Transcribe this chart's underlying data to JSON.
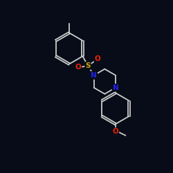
{
  "bg": "#080c18",
  "bc": "#cccccc",
  "bw": 1.3,
  "sc": "#ccaa00",
  "nc": "#2222ee",
  "oc": "#ee2200",
  "fs": 7.5,
  "doff": 0.055,
  "figsize": [
    2.5,
    2.5
  ],
  "dpi": 100,
  "xlim": [
    0,
    10
  ],
  "ylim": [
    0,
    10
  ]
}
